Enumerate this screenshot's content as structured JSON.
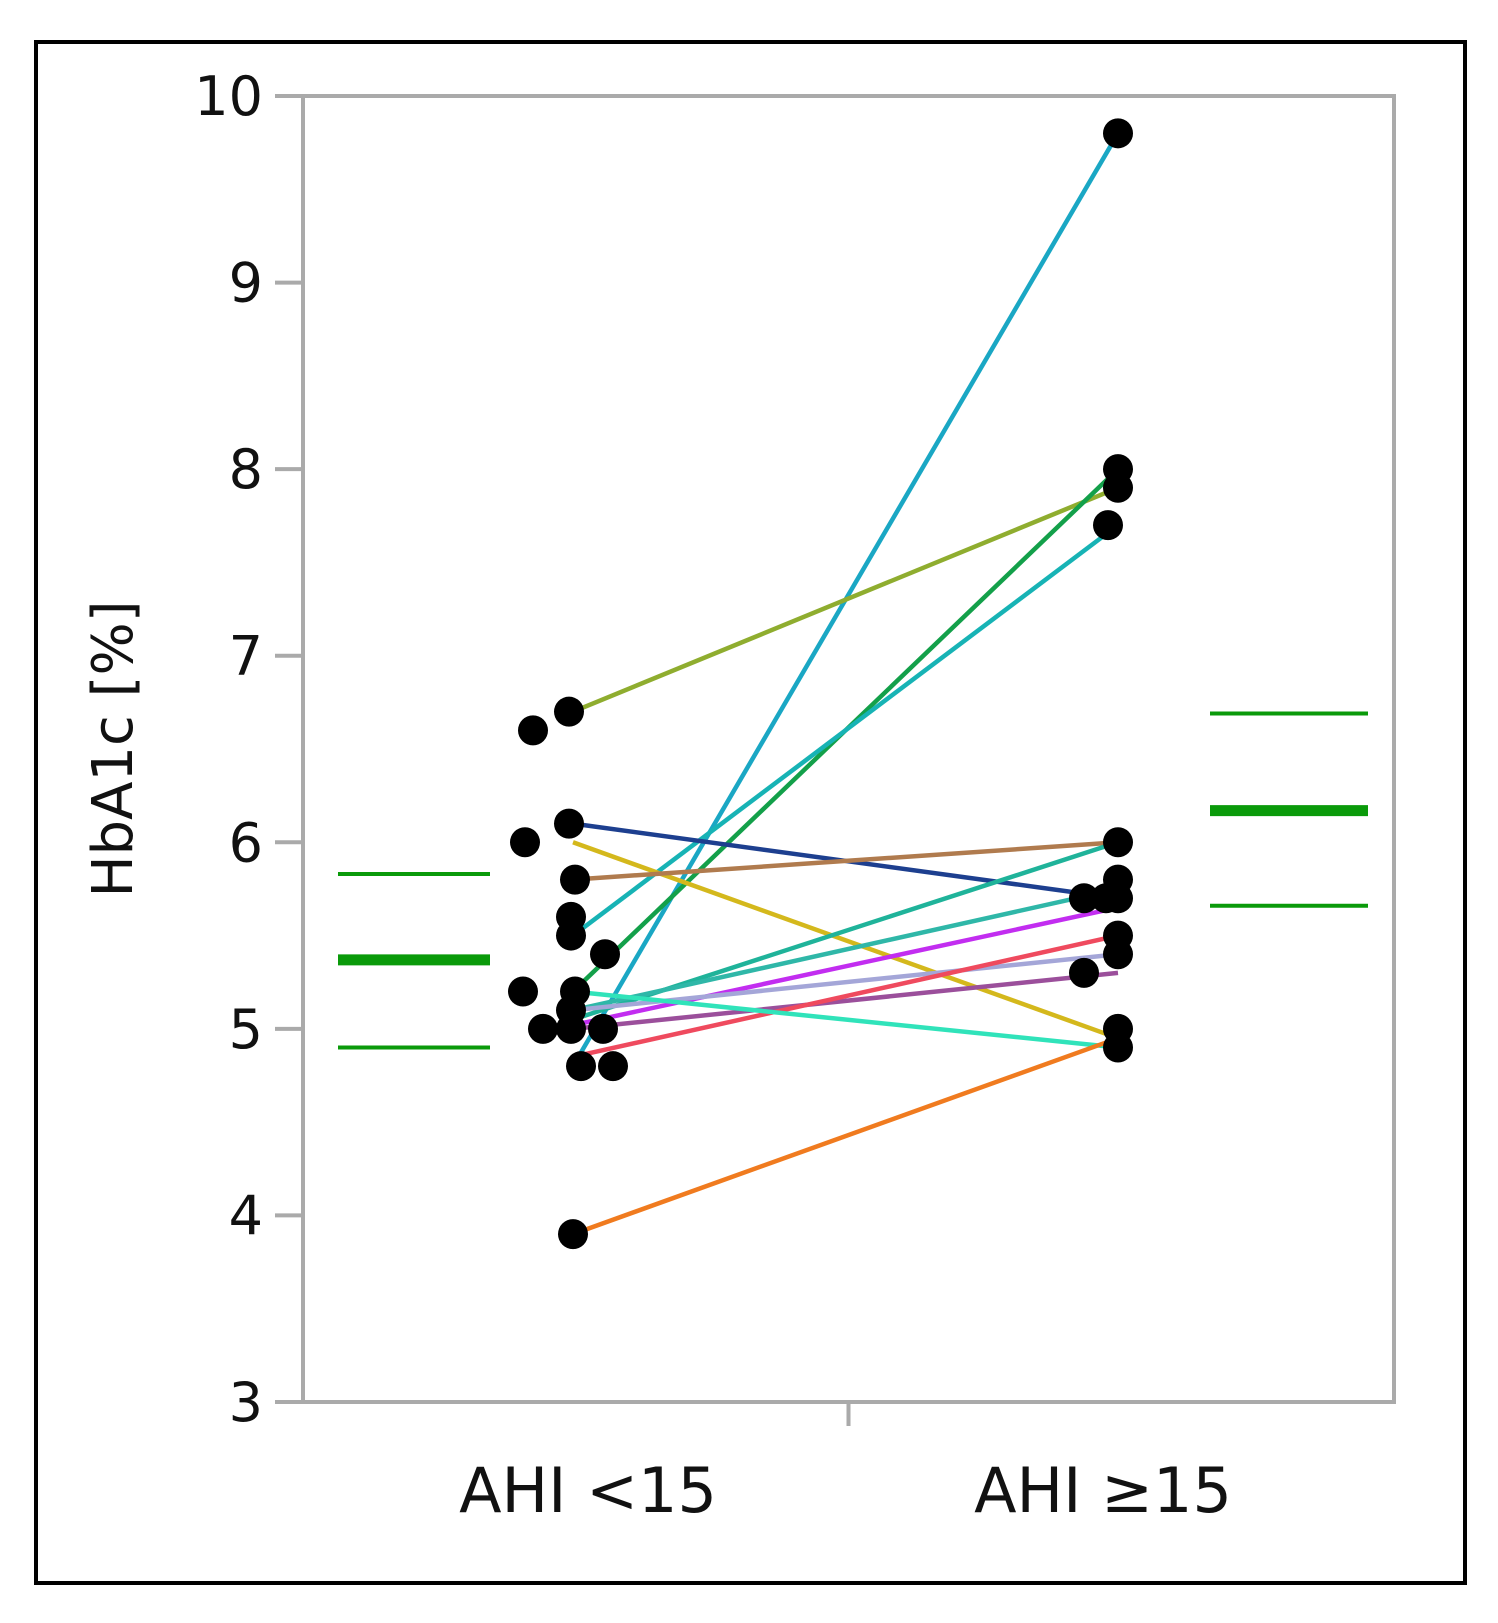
{
  "chart_data": {
    "type": "paired-dot",
    "title": "",
    "ylabel": "HbA1c [%]",
    "xlabel": "",
    "ylim": [
      3,
      10
    ],
    "yticks": [
      3,
      4,
      5,
      6,
      7,
      8,
      9,
      10
    ],
    "categories": [
      "AHI <15",
      "AHI ≥15"
    ],
    "group_points": [
      [
        6.6,
        6.7,
        6.1,
        6.0,
        5.8,
        5.6,
        5.5,
        5.4,
        5.2,
        5.2,
        5.1,
        5.0,
        5.0,
        5.0,
        4.8,
        4.8,
        3.9
      ],
      [
        9.8,
        8.0,
        7.9,
        7.7,
        6.0,
        5.8,
        5.7,
        5.7,
        5.7,
        5.5,
        5.4,
        5.3,
        5.0,
        4.9
      ]
    ],
    "pairs": [
      {
        "from": 4.8,
        "to": 9.8,
        "color": "#1aa7c4"
      },
      {
        "from": 6.7,
        "to": 7.9,
        "color": "#8fad2f"
      },
      {
        "from": 5.2,
        "to": 8.0,
        "color": "#13a04a"
      },
      {
        "from": 5.5,
        "to": 7.7,
        "color": "#17b3b5"
      },
      {
        "from": 6.1,
        "to": 5.7,
        "color": "#1d3f8f"
      },
      {
        "from": 6.0,
        "to": 4.95,
        "color": "#d4b81c"
      },
      {
        "from": 5.8,
        "to": 6.0,
        "color": "#b07b4e"
      },
      {
        "from": 5.05,
        "to": 6.0,
        "color": "#1fb39a"
      },
      {
        "from": 5.1,
        "to": 5.75,
        "color": "#2fb7a8"
      },
      {
        "from": 5.02,
        "to": 5.65,
        "color": "#c22df0"
      },
      {
        "from": 5.1,
        "to": 5.4,
        "color": "#a4a6d8"
      },
      {
        "from": 5.0,
        "to": 5.3,
        "color": "#9b4f9b"
      },
      {
        "from": 4.85,
        "to": 5.5,
        "color": "#ef4a5e"
      },
      {
        "from": 5.2,
        "to": 4.9,
        "color": "#30e3ba"
      },
      {
        "from": 3.9,
        "to": 4.95,
        "color": "#f07b1f"
      }
    ],
    "summary_lines": [
      {
        "group": "AHI <15",
        "mean": 5.37,
        "lower": 4.9,
        "upper": 5.83,
        "color": "#0a9a0a"
      },
      {
        "group": "AHI ≥15",
        "mean": 6.17,
        "lower": 5.66,
        "upper": 6.69,
        "color": "#0a9a0a"
      }
    ]
  }
}
